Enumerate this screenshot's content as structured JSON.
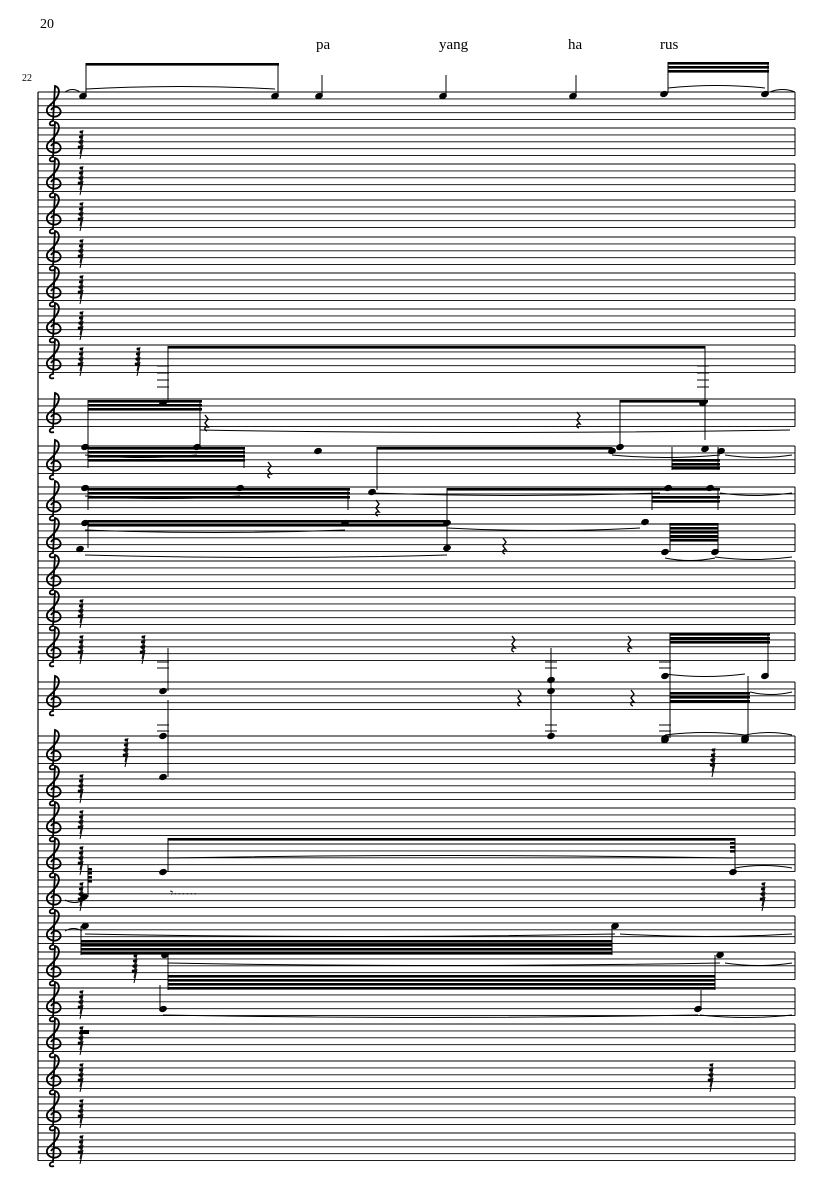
{
  "page_number": "20",
  "measure_number": "22",
  "lyrics": [
    "pa",
    "yang",
    "ha",
    "rus"
  ],
  "score": {
    "staff_count": 28,
    "clef": "treble-clef",
    "line_color": "#000000"
  }
}
